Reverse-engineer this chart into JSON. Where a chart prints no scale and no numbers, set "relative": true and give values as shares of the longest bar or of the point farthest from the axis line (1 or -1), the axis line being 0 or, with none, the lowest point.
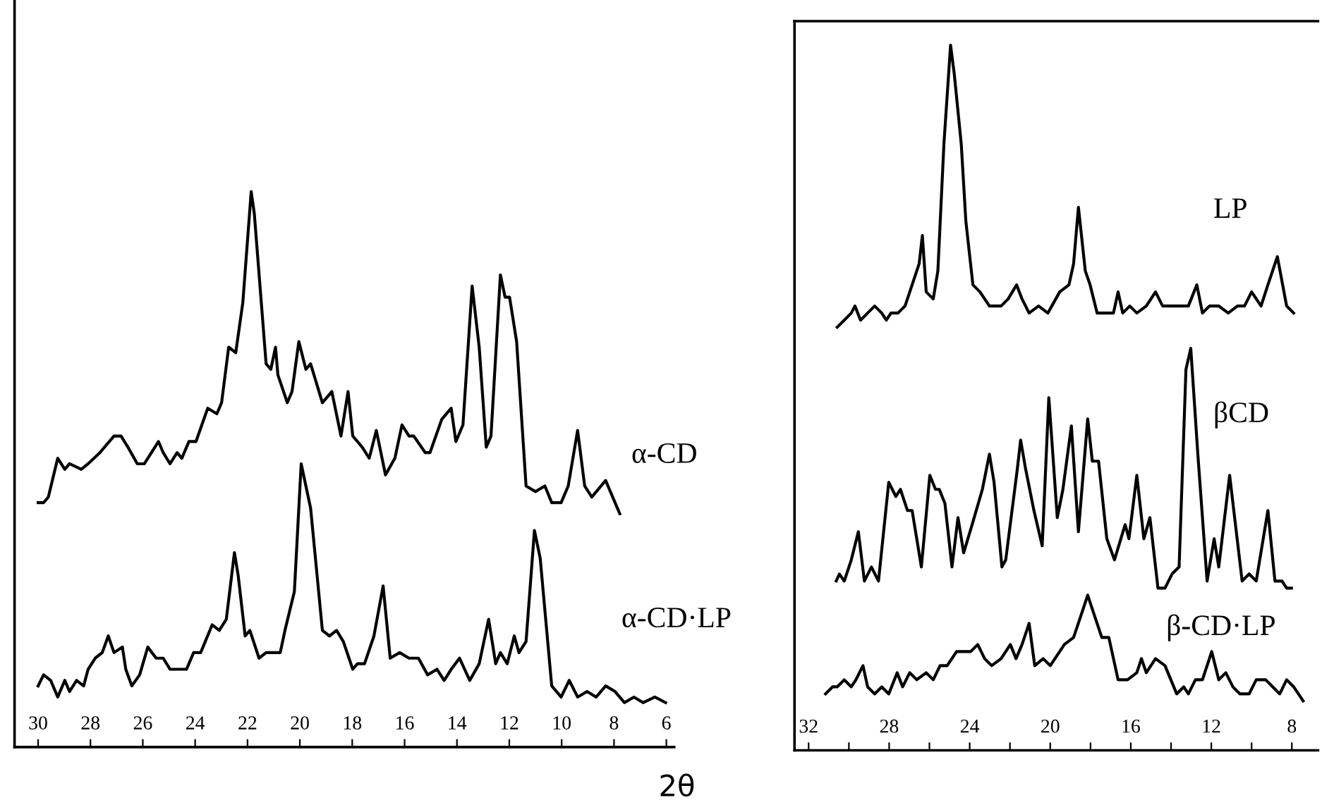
{
  "chart_data": [
    {
      "type": "line",
      "relative": true,
      "xlabel": "2θ",
      "xlim": [
        30.9,
        5.7
      ],
      "xticks": [
        30,
        28,
        26,
        24,
        22,
        20,
        18,
        16,
        14,
        12,
        10,
        8,
        6
      ],
      "legend": false,
      "grid": false,
      "series": [
        {
          "name": "α-CD",
          "color": "#000000",
          "x": [
            30.0,
            29.79,
            29.61,
            29.25,
            28.98,
            28.8,
            28.35,
            28.09,
            27.64,
            27.28,
            27.1,
            26.83,
            26.57,
            26.21,
            25.94,
            25.67,
            25.4,
            25.22,
            24.96,
            24.69,
            24.51,
            24.24,
            23.97,
            23.52,
            23.17,
            22.99,
            22.72,
            22.45,
            22.18,
            21.86,
            21.74,
            21.29,
            21.11,
            20.93,
            20.84,
            20.48,
            20.3,
            20.04,
            19.77,
            19.59,
            19.14,
            18.78,
            18.43,
            18.16,
            17.98,
            17.62,
            17.35,
            17.08,
            16.73,
            16.37,
            16.1,
            15.83,
            15.65,
            15.21,
            15.03,
            14.58,
            14.22,
            14.04,
            13.77,
            13.42,
            13.15,
            12.88,
            12.7,
            12.34,
            12.16,
            11.99,
            11.72,
            11.36,
            11.0,
            10.64,
            10.38,
            10.02,
            9.75,
            9.39,
            9.12,
            8.85,
            8.32,
            7.78
          ],
          "values": [
            0.44,
            0.44,
            0.45,
            0.52,
            0.5,
            0.51,
            0.5,
            0.51,
            0.53,
            0.55,
            0.56,
            0.56,
            0.54,
            0.51,
            0.51,
            0.53,
            0.55,
            0.53,
            0.51,
            0.53,
            0.52,
            0.55,
            0.55,
            0.61,
            0.6,
            0.62,
            0.72,
            0.71,
            0.8,
            1.0,
            0.96,
            0.69,
            0.68,
            0.72,
            0.67,
            0.62,
            0.64,
            0.73,
            0.68,
            0.69,
            0.62,
            0.64,
            0.56,
            0.64,
            0.56,
            0.54,
            0.52,
            0.57,
            0.49,
            0.52,
            0.58,
            0.56,
            0.56,
            0.53,
            0.53,
            0.59,
            0.61,
            0.55,
            0.58,
            0.83,
            0.72,
            0.54,
            0.56,
            0.85,
            0.81,
            0.81,
            0.73,
            0.47,
            0.46,
            0.47,
            0.44,
            0.44,
            0.47,
            0.57,
            0.47,
            0.45,
            0.48,
            0.42
          ]
        },
        {
          "name": "α-CD·LP",
          "color": "#000000",
          "x": [
            30.0,
            29.79,
            29.52,
            29.25,
            28.98,
            28.8,
            28.53,
            28.26,
            28.09,
            27.82,
            27.55,
            27.32,
            27.1,
            26.78,
            26.65,
            26.42,
            26.12,
            25.81,
            25.49,
            25.22,
            24.96,
            24.69,
            24.33,
            24.06,
            23.79,
            23.35,
            23.08,
            22.81,
            22.5,
            22.36,
            22.09,
            21.91,
            21.56,
            21.29,
            21.02,
            20.75,
            20.57,
            20.21,
            19.95,
            19.59,
            19.14,
            18.87,
            18.6,
            18.34,
            17.98,
            17.8,
            17.53,
            17.17,
            16.82,
            16.55,
            16.19,
            15.83,
            15.47,
            15.12,
            14.76,
            14.49,
            14.22,
            13.9,
            13.51,
            13.15,
            12.79,
            12.52,
            12.34,
            12.08,
            11.81,
            11.63,
            11.36,
            11.04,
            10.82,
            10.38,
            10.02,
            9.71,
            9.39,
            9.03,
            8.68,
            8.32,
            7.96,
            7.6,
            7.24,
            6.89,
            6.44,
            6.03
          ],
          "values": [
            0.11,
            0.13,
            0.12,
            0.09,
            0.12,
            0.1,
            0.12,
            0.11,
            0.14,
            0.16,
            0.17,
            0.2,
            0.17,
            0.18,
            0.14,
            0.11,
            0.13,
            0.18,
            0.16,
            0.16,
            0.14,
            0.14,
            0.14,
            0.17,
            0.17,
            0.22,
            0.21,
            0.23,
            0.35,
            0.31,
            0.2,
            0.21,
            0.16,
            0.17,
            0.17,
            0.17,
            0.21,
            0.28,
            0.51,
            0.43,
            0.21,
            0.2,
            0.21,
            0.19,
            0.14,
            0.15,
            0.15,
            0.2,
            0.29,
            0.16,
            0.17,
            0.16,
            0.16,
            0.13,
            0.14,
            0.12,
            0.14,
            0.16,
            0.12,
            0.15,
            0.23,
            0.15,
            0.17,
            0.15,
            0.2,
            0.17,
            0.19,
            0.39,
            0.34,
            0.11,
            0.09,
            0.12,
            0.09,
            0.1,
            0.09,
            0.11,
            0.1,
            0.08,
            0.09,
            0.08,
            0.09,
            0.08
          ]
        }
      ]
    },
    {
      "type": "line",
      "relative": true,
      "xlim": [
        32.7,
        6.7
      ],
      "xticks": [
        32,
        {
          "value": 30,
          "label": null
        },
        28,
        {
          "value": 26,
          "label": null
        },
        24,
        {
          "value": 22,
          "label": null
        },
        20,
        {
          "value": 18,
          "label": null
        },
        16,
        {
          "value": 14,
          "label": null
        },
        12,
        {
          "value": 10,
          "label": null
        },
        8
      ],
      "legend": false,
      "grid": false,
      "series": [
        {
          "name": "LP",
          "color": "#000000",
          "x": [
            30.58,
            30.23,
            29.88,
            29.7,
            29.42,
            29.07,
            28.72,
            28.37,
            28.14,
            27.91,
            27.56,
            27.21,
            26.86,
            26.51,
            26.35,
            26.16,
            25.81,
            25.58,
            25.28,
            24.95,
            24.77,
            24.42,
            24.19,
            23.84,
            23.49,
            23.02,
            22.44,
            22.09,
            21.67,
            21.4,
            21.05,
            20.58,
            20.12,
            19.53,
            19.07,
            18.84,
            18.6,
            18.26,
            18.02,
            17.67,
            17.21,
            16.86,
            16.63,
            16.4,
            16.05,
            15.7,
            15.23,
            14.77,
            14.42,
            13.95,
            13.6,
            13.14,
            12.72,
            12.44,
            12.09,
            11.63,
            11.16,
            10.7,
            10.35,
            10.0,
            9.53,
            9.19,
            8.72,
            8.26,
            7.91
          ],
          "values": [
            0.6,
            0.61,
            0.62,
            0.63,
            0.61,
            0.62,
            0.63,
            0.62,
            0.61,
            0.62,
            0.62,
            0.63,
            0.66,
            0.69,
            0.73,
            0.65,
            0.64,
            0.68,
            0.86,
            1.0,
            0.96,
            0.86,
            0.75,
            0.66,
            0.65,
            0.63,
            0.63,
            0.64,
            0.66,
            0.64,
            0.62,
            0.63,
            0.62,
            0.65,
            0.66,
            0.69,
            0.77,
            0.68,
            0.66,
            0.62,
            0.62,
            0.62,
            0.65,
            0.62,
            0.63,
            0.62,
            0.63,
            0.65,
            0.63,
            0.63,
            0.63,
            0.63,
            0.66,
            0.62,
            0.63,
            0.63,
            0.62,
            0.63,
            0.63,
            0.65,
            0.63,
            0.66,
            0.7,
            0.63,
            0.62
          ]
        },
        {
          "name": "βCD",
          "color": "#000000",
          "x": [
            30.63,
            30.47,
            30.23,
            29.88,
            29.53,
            29.23,
            28.88,
            28.53,
            28.02,
            27.67,
            27.44,
            27.09,
            26.86,
            26.4,
            25.98,
            25.7,
            25.51,
            25.23,
            24.88,
            24.58,
            24.3,
            23.88,
            23.37,
            23.02,
            22.79,
            22.4,
            22.21,
            21.63,
            21.47,
            21.23,
            20.81,
            20.4,
            20.07,
            19.65,
            19.37,
            18.95,
            18.6,
            18.14,
            17.91,
            17.6,
            17.19,
            16.81,
            16.28,
            16.09,
            15.7,
            15.35,
            15.05,
            14.65,
            14.3,
            13.95,
            13.6,
            13.26,
            13.02,
            12.67,
            12.21,
            11.86,
            11.63,
            11.09,
            10.47,
            10.12,
            9.77,
            9.19,
            8.84,
            8.49,
            8.26,
            8.02
          ],
          "values": [
            0.24,
            0.25,
            0.24,
            0.27,
            0.31,
            0.24,
            0.26,
            0.24,
            0.38,
            0.36,
            0.37,
            0.34,
            0.34,
            0.26,
            0.39,
            0.37,
            0.37,
            0.35,
            0.26,
            0.33,
            0.28,
            0.32,
            0.37,
            0.42,
            0.38,
            0.26,
            0.27,
            0.4,
            0.44,
            0.4,
            0.34,
            0.29,
            0.5,
            0.33,
            0.37,
            0.46,
            0.31,
            0.47,
            0.41,
            0.41,
            0.3,
            0.27,
            0.32,
            0.3,
            0.39,
            0.3,
            0.33,
            0.23,
            0.23,
            0.25,
            0.26,
            0.54,
            0.57,
            0.42,
            0.24,
            0.3,
            0.26,
            0.39,
            0.24,
            0.25,
            0.24,
            0.34,
            0.24,
            0.24,
            0.23,
            0.23
          ]
        },
        {
          "name": "β-CD·LP",
          "color": "#000000",
          "x": [
            31.16,
            30.81,
            30.58,
            30.23,
            29.88,
            29.65,
            29.3,
            29.07,
            28.72,
            28.37,
            28.02,
            27.6,
            27.33,
            26.98,
            26.63,
            26.16,
            25.81,
            25.47,
            25.12,
            24.65,
            24.3,
            23.95,
            23.6,
            23.26,
            22.91,
            22.44,
            21.98,
            21.7,
            21.4,
            21.05,
            20.77,
            20.35,
            20.0,
            19.53,
            19.3,
            18.84,
            18.37,
            18.14,
            17.79,
            17.44,
            17.09,
            16.63,
            16.16,
            15.7,
            15.47,
            15.23,
            14.77,
            14.3,
            13.72,
            13.37,
            13.14,
            12.79,
            12.44,
            11.98,
            11.63,
            11.28,
            10.93,
            10.58,
            10.12,
            9.77,
            9.3,
            8.95,
            8.6,
            8.26,
            7.91,
            7.44
          ],
          "values": [
            0.08,
            0.09,
            0.09,
            0.1,
            0.09,
            0.1,
            0.12,
            0.09,
            0.08,
            0.09,
            0.08,
            0.11,
            0.09,
            0.11,
            0.1,
            0.11,
            0.1,
            0.12,
            0.12,
            0.14,
            0.14,
            0.14,
            0.15,
            0.13,
            0.12,
            0.13,
            0.15,
            0.13,
            0.15,
            0.18,
            0.12,
            0.13,
            0.12,
            0.14,
            0.15,
            0.16,
            0.2,
            0.22,
            0.19,
            0.16,
            0.16,
            0.1,
            0.1,
            0.11,
            0.13,
            0.11,
            0.13,
            0.12,
            0.08,
            0.09,
            0.08,
            0.1,
            0.1,
            0.14,
            0.1,
            0.11,
            0.09,
            0.08,
            0.08,
            0.1,
            0.1,
            0.09,
            0.08,
            0.1,
            0.09,
            0.07
          ]
        }
      ]
    }
  ]
}
